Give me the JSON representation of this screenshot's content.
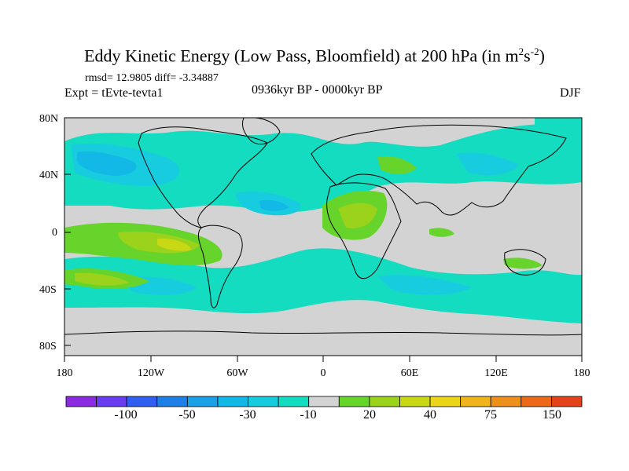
{
  "title": {
    "prefix": "Eddy Kinetic Energy (Low Pass, Bloomfield) at 200 hPa (in m",
    "exp1": "2",
    "mid": "s",
    "exp2": "-2",
    "suffix": ")"
  },
  "stats": "rmsd= 12.9805 diff= -3.34887",
  "experiment": "Expt = tEvte-tevta1",
  "period": "0936kyr BP - 0000kyr BP",
  "season": "DJF",
  "map": {
    "lat_ticks": [
      "80N",
      "40N",
      "0",
      "40S",
      "80S"
    ],
    "lon_ticks": [
      "180",
      "120W",
      "60W",
      "0",
      "60E",
      "120E",
      "180"
    ],
    "land_color": "#d3d3d3"
  },
  "colorbar": {
    "colors": [
      "#8a2be2",
      "#6a3cf0",
      "#2f5ef0",
      "#1e7fe6",
      "#1aa0e6",
      "#12b9e6",
      "#18cce0",
      "#14dcc0",
      "#d3d3d3",
      "#66d42a",
      "#9ad21c",
      "#c8d814",
      "#ecd418",
      "#f0b41c",
      "#ee8f1c",
      "#ea6a1a",
      "#e4421a"
    ],
    "labels": [
      "-100",
      "-50",
      "-30",
      "-10",
      "20",
      "40",
      "75",
      "150"
    ]
  }
}
